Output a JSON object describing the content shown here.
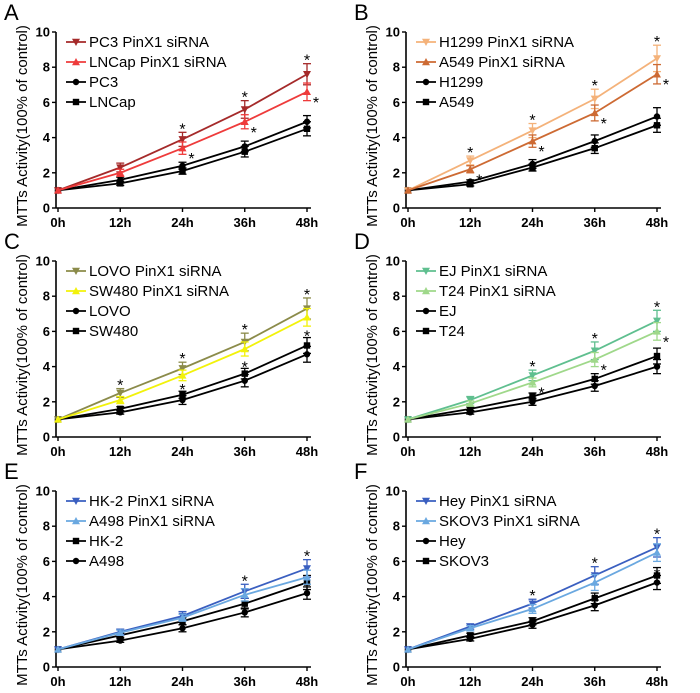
{
  "chart_data": [
    {
      "panel": "A",
      "type": "line",
      "title": "",
      "xlabel": "",
      "ylabel": "MTTs Activity(100% of control)",
      "categories": [
        "0h",
        "12h",
        "24h",
        "36h",
        "48h"
      ],
      "ylim": [
        0,
        10
      ],
      "yticks": [
        "0",
        "2",
        "4",
        "6",
        "8",
        "10"
      ],
      "legend_position": "top-left",
      "series": [
        {
          "name": "PC3 PinX1 siRNA",
          "color": "#a52a2a",
          "marker": "triangle-down",
          "values": [
            1.0,
            2.3,
            3.9,
            5.6,
            7.6
          ],
          "errors": [
            0.05,
            0.25,
            0.4,
            0.5,
            0.6
          ],
          "sig": [
            false,
            false,
            true,
            true,
            true
          ]
        },
        {
          "name": "LNCap PinX1 siRNA",
          "color": "#ee3b3b",
          "marker": "triangle-up",
          "values": [
            1.0,
            2.0,
            3.4,
            4.9,
            6.6
          ],
          "errors": [
            0.05,
            0.2,
            0.35,
            0.4,
            0.5
          ],
          "sig": [
            false,
            false,
            true,
            true,
            true
          ]
        },
        {
          "name": "PC3",
          "color": "#000000",
          "marker": "circle",
          "values": [
            1.0,
            1.6,
            2.4,
            3.5,
            4.9
          ],
          "errors": [
            0.05,
            0.15,
            0.2,
            0.3,
            0.35
          ],
          "sig": [
            false,
            false,
            false,
            false,
            false
          ]
        },
        {
          "name": "LNCap",
          "color": "#000000",
          "marker": "square",
          "values": [
            1.0,
            1.4,
            2.1,
            3.2,
            4.5
          ],
          "errors": [
            0.05,
            0.12,
            0.18,
            0.3,
            0.4
          ],
          "sig": [
            false,
            false,
            false,
            false,
            false
          ]
        }
      ]
    },
    {
      "panel": "B",
      "type": "line",
      "title": "",
      "xlabel": "",
      "ylabel": "MTTs Activity(100% of control)",
      "categories": [
        "0h",
        "12h",
        "24h",
        "36h",
        "48h"
      ],
      "ylim": [
        0,
        10
      ],
      "yticks": [
        "0",
        "2",
        "4",
        "6",
        "8",
        "10"
      ],
      "legend_position": "top-left",
      "series": [
        {
          "name": "H1299 PinX1 siRNA",
          "color": "#f4b27a",
          "marker": "triangle-down",
          "values": [
            1.0,
            2.7,
            4.4,
            6.2,
            8.5
          ],
          "errors": [
            0.05,
            0.25,
            0.4,
            0.55,
            0.75
          ],
          "sig": [
            false,
            true,
            true,
            true,
            true
          ]
        },
        {
          "name": "A549 PinX1 siRNA",
          "color": "#cd6a33",
          "marker": "triangle-up",
          "values": [
            1.0,
            2.2,
            3.8,
            5.4,
            7.6
          ],
          "errors": [
            0.05,
            0.2,
            0.35,
            0.45,
            0.55
          ],
          "sig": [
            false,
            true,
            true,
            true,
            true
          ]
        },
        {
          "name": "H1299",
          "color": "#000000",
          "marker": "circle",
          "values": [
            1.0,
            1.5,
            2.5,
            3.8,
            5.2
          ],
          "errors": [
            0.05,
            0.1,
            0.25,
            0.35,
            0.5
          ],
          "sig": [
            false,
            false,
            false,
            false,
            false
          ]
        },
        {
          "name": "A549",
          "color": "#000000",
          "marker": "square",
          "values": [
            1.0,
            1.35,
            2.3,
            3.4,
            4.7
          ],
          "errors": [
            0.05,
            0.1,
            0.2,
            0.3,
            0.4
          ],
          "sig": [
            false,
            false,
            false,
            false,
            false
          ]
        }
      ]
    },
    {
      "panel": "C",
      "type": "line",
      "title": "",
      "xlabel": "",
      "ylabel": "MTTs Activity(100% of control)",
      "categories": [
        "0h",
        "12h",
        "24h",
        "36h",
        "48h"
      ],
      "ylim": [
        0,
        10
      ],
      "yticks": [
        "0",
        "2",
        "4",
        "6",
        "8",
        "10"
      ],
      "legend_position": "top-left",
      "series": [
        {
          "name": "LOVO PinX1 siRNA",
          "color": "#8b8b4a",
          "marker": "triangle-down",
          "values": [
            1.0,
            2.5,
            3.9,
            5.4,
            7.3
          ],
          "errors": [
            0.05,
            0.25,
            0.35,
            0.5,
            0.6
          ],
          "sig": [
            false,
            true,
            true,
            true,
            true
          ]
        },
        {
          "name": "SW480 PinX1 siRNA",
          "color": "#f2f20a",
          "marker": "triangle-up",
          "values": [
            1.0,
            2.1,
            3.5,
            5.0,
            6.8
          ],
          "errors": [
            0.05,
            0.2,
            0.3,
            0.4,
            0.5
          ],
          "sig": [
            false,
            false,
            false,
            false,
            false
          ]
        },
        {
          "name": "LOVO",
          "color": "#000000",
          "marker": "circle",
          "values": [
            1.0,
            1.4,
            2.1,
            3.2,
            4.7
          ],
          "errors": [
            0.05,
            0.1,
            0.25,
            0.35,
            0.45
          ],
          "sig": [
            false,
            false,
            false,
            false,
            false
          ]
        },
        {
          "name": "SW480",
          "color": "#000000",
          "marker": "square",
          "values": [
            1.0,
            1.6,
            2.4,
            3.6,
            5.2
          ],
          "errors": [
            0.05,
            0.12,
            0.2,
            0.3,
            0.45
          ],
          "sig": [
            false,
            false,
            true,
            true,
            true
          ]
        }
      ]
    },
    {
      "panel": "D",
      "type": "line",
      "title": "",
      "xlabel": "",
      "ylabel": "MTTs Activity(100% of control)",
      "categories": [
        "0h",
        "12h",
        "24h",
        "36h",
        "48h"
      ],
      "ylim": [
        0,
        10
      ],
      "yticks": [
        "0",
        "2",
        "4",
        "6",
        "8",
        "10"
      ],
      "legend_position": "top-left",
      "series": [
        {
          "name": "EJ PinX1 siRNA",
          "color": "#5fbf8f",
          "marker": "triangle-down",
          "values": [
            1.0,
            2.1,
            3.5,
            4.9,
            6.6
          ],
          "errors": [
            0.05,
            0.2,
            0.3,
            0.5,
            0.6
          ],
          "sig": [
            false,
            false,
            true,
            true,
            true
          ]
        },
        {
          "name": "T24 PinX1 siRNA",
          "color": "#9fd88a",
          "marker": "triangle-up",
          "values": [
            1.0,
            1.9,
            3.1,
            4.4,
            6.0
          ],
          "errors": [
            0.05,
            0.15,
            0.25,
            0.4,
            0.5
          ],
          "sig": [
            false,
            false,
            true,
            true,
            true
          ]
        },
        {
          "name": "EJ",
          "color": "#000000",
          "marker": "circle",
          "values": [
            1.0,
            1.4,
            2.0,
            2.9,
            4.0
          ],
          "errors": [
            0.05,
            0.1,
            0.2,
            0.3,
            0.4
          ],
          "sig": [
            false,
            false,
            false,
            false,
            false
          ]
        },
        {
          "name": "T24",
          "color": "#000000",
          "marker": "square",
          "values": [
            1.0,
            1.6,
            2.3,
            3.3,
            4.6
          ],
          "errors": [
            0.05,
            0.1,
            0.2,
            0.3,
            0.45
          ],
          "sig": [
            false,
            false,
            false,
            false,
            false
          ]
        }
      ]
    },
    {
      "panel": "E",
      "type": "line",
      "title": "",
      "xlabel": "",
      "ylabel": "MTTs Activity(100% of control)",
      "categories": [
        "0h",
        "12h",
        "24h",
        "36h",
        "48h"
      ],
      "ylim": [
        0,
        10
      ],
      "yticks": [
        "0",
        "2",
        "4",
        "6",
        "8",
        "10"
      ],
      "legend_position": "top-left",
      "series": [
        {
          "name": "HK-2 PinX1 siRNA",
          "color": "#3a5fc0",
          "marker": "triangle-down",
          "values": [
            1.0,
            2.0,
            2.9,
            4.3,
            5.6
          ],
          "errors": [
            0.05,
            0.15,
            0.25,
            0.4,
            0.5
          ],
          "sig": [
            false,
            false,
            false,
            true,
            true
          ]
        },
        {
          "name": "A498 PinX1 siRNA",
          "color": "#6aa8e0",
          "marker": "triangle-up",
          "values": [
            1.0,
            1.95,
            2.8,
            4.1,
            5.1
          ],
          "errors": [
            0.05,
            0.15,
            0.2,
            0.35,
            0.4
          ],
          "sig": [
            false,
            false,
            false,
            false,
            false
          ]
        },
        {
          "name": "HK-2",
          "color": "#000000",
          "marker": "square",
          "values": [
            1.0,
            1.8,
            2.6,
            3.6,
            4.8
          ],
          "errors": [
            0.05,
            0.12,
            0.2,
            0.3,
            0.4
          ],
          "sig": [
            false,
            false,
            false,
            false,
            false
          ]
        },
        {
          "name": "A498",
          "color": "#000000",
          "marker": "circle",
          "values": [
            1.0,
            1.5,
            2.2,
            3.1,
            4.2
          ],
          "errors": [
            0.05,
            0.1,
            0.2,
            0.25,
            0.35
          ],
          "sig": [
            false,
            false,
            false,
            false,
            false
          ]
        }
      ]
    },
    {
      "panel": "F",
      "type": "line",
      "title": "",
      "xlabel": "",
      "ylabel": "MTTs Activity(100% of control)",
      "categories": [
        "0h",
        "12h",
        "24h",
        "36h",
        "48h"
      ],
      "ylim": [
        0,
        10
      ],
      "yticks": [
        "0",
        "2",
        "4",
        "6",
        "8",
        "10"
      ],
      "legend_position": "top-left",
      "series": [
        {
          "name": "Hey PinX1 siRNA",
          "color": "#3a5fc0",
          "marker": "triangle-down",
          "values": [
            1.0,
            2.3,
            3.6,
            5.2,
            6.8
          ],
          "errors": [
            0.05,
            0.15,
            0.25,
            0.5,
            0.55
          ],
          "sig": [
            false,
            false,
            true,
            true,
            true
          ]
        },
        {
          "name": "SKOV3 PinX1 siRNA",
          "color": "#6aa8e0",
          "marker": "triangle-up",
          "values": [
            1.0,
            2.2,
            3.3,
            4.8,
            6.5
          ],
          "errors": [
            0.05,
            0.15,
            0.25,
            0.45,
            0.5
          ],
          "sig": [
            false,
            false,
            false,
            false,
            false
          ]
        },
        {
          "name": "Hey",
          "color": "#000000",
          "marker": "circle",
          "values": [
            1.0,
            1.6,
            2.4,
            3.5,
            4.8
          ],
          "errors": [
            0.05,
            0.12,
            0.2,
            0.3,
            0.4
          ],
          "sig": [
            false,
            false,
            false,
            true,
            true
          ]
        },
        {
          "name": "SKOV3",
          "color": "#000000",
          "marker": "square",
          "values": [
            1.0,
            1.8,
            2.6,
            3.9,
            5.2
          ],
          "errors": [
            0.05,
            0.12,
            0.2,
            0.3,
            0.45
          ],
          "sig": [
            false,
            false,
            false,
            false,
            false
          ]
        }
      ]
    }
  ],
  "significance_marker": "*"
}
